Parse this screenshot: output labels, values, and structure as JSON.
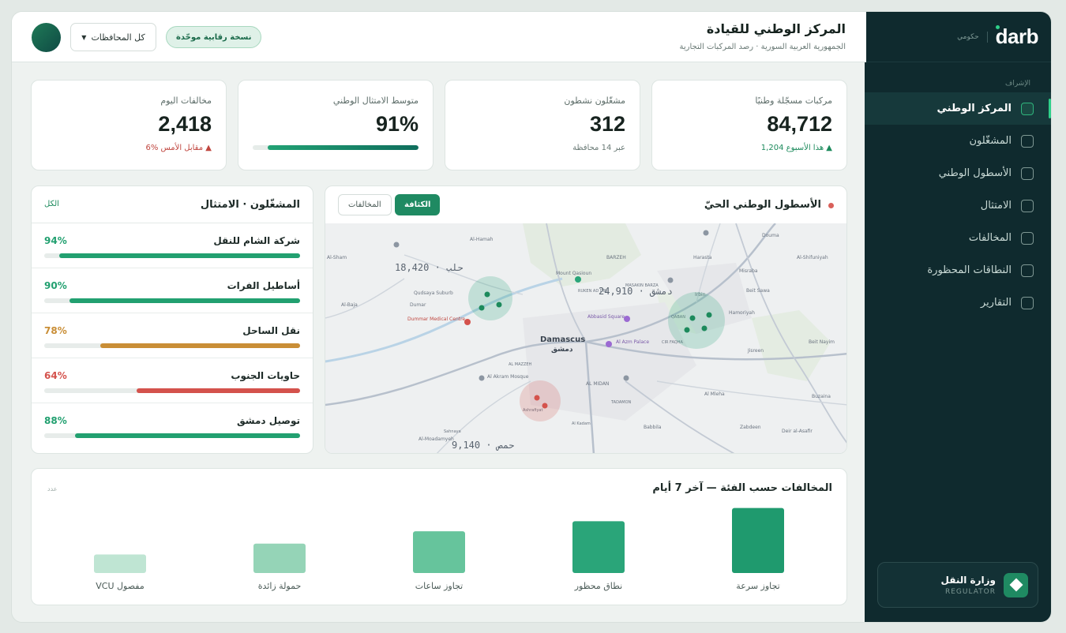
{
  "header": {
    "title": "المركز الوطني للقيادة",
    "subtitle": "الجمهورية العربية السورية · رصد المركبات التجارية",
    "badge": "نسخة رقابية موحّدة",
    "province_select": "كل المحافظات"
  },
  "sidebar": {
    "logo": "darb",
    "logo_sub": "حكومي",
    "section_label": "الإشراف",
    "items": [
      {
        "label": "المركز الوطني",
        "active": true
      },
      {
        "label": "المشغّلون",
        "active": false
      },
      {
        "label": "الأسطول الوطني",
        "active": false
      },
      {
        "label": "الامتثال",
        "active": false
      },
      {
        "label": "المخالفات",
        "active": false
      },
      {
        "label": "النطاقات المحظورة",
        "active": false
      },
      {
        "label": "التقارير",
        "active": false
      }
    ],
    "regulator": {
      "title": "وزارة النقل",
      "subtitle": "REGULATOR"
    }
  },
  "kpis": [
    {
      "label": "مركبات مسجّلة وطنيًا",
      "value": "84,712",
      "note": "1,204 هذا الأسبوع",
      "trend": "up"
    },
    {
      "label": "مشغّلون نشطون",
      "value": "312",
      "note": "عبر 14 محافظة",
      "trend": "none"
    },
    {
      "label": "متوسط الامتثال الوطني",
      "value": "91%",
      "progress": 0.91
    },
    {
      "label": "مخالفات اليوم",
      "value": "2,418",
      "note": "6% مقابل الأمس",
      "trend": "down"
    }
  ],
  "operators": {
    "title": "المشغّلون · الامتثال",
    "all_link": "الكل",
    "rows": [
      {
        "name": "شركة الشام للنقل",
        "pct": 94,
        "label": "94%",
        "color": "#22a070"
      },
      {
        "name": "أساطيل الفرات",
        "pct": 90,
        "label": "90%",
        "color": "#22a070"
      },
      {
        "name": "نقل الساحل",
        "pct": 78,
        "label": "78%",
        "color": "#c98e36"
      },
      {
        "name": "حاويات الجنوب",
        "pct": 64,
        "label": "64%",
        "color": "#d4524c"
      },
      {
        "name": "توصيل دمشق",
        "pct": 88,
        "label": "88%",
        "color": "#22a070"
      }
    ]
  },
  "map": {
    "title": "الأسطول الوطني الحيّ",
    "tab_density": "الكثافة",
    "tab_violations": "المخالفات",
    "counts": [
      {
        "label": "حلب · 18,420"
      },
      {
        "label": "دمشق · 24,910"
      },
      {
        "label": "حمص · 9,140"
      }
    ],
    "places": [
      "Al-Hamah",
      "Dumar",
      "Qudsaya Suburb",
      "Mount Qasioun",
      "BARZEH",
      "Harasta",
      "Douma",
      "Al-Shifuniyah",
      "Misraba",
      "Beit Sawa",
      "Irbin",
      "Hamoriyah",
      "Damascus",
      "دمشق",
      "Abbasid Square",
      "Al Azm Palace",
      "Dummar Medical Centre",
      "Al Akram Mosque",
      "AL MIDAN",
      "Al Mleha",
      "Jisreen",
      "Beit Nayim",
      "Buzaina",
      "Zabdeen",
      "Deir al-Asafir",
      "Babbila",
      "Al-Moadamyeh",
      "Al-Baja",
      "Al-Sham",
      "RUKEN AD DIN",
      "MASAKIN BARZA",
      "CIR FAQHA",
      "QABAN",
      "TADAMON",
      "Al Kadam",
      "AL MAZZEH",
      "Sahnaya",
      "Ashrafiyat"
    ]
  },
  "chart_data": {
    "type": "bar",
    "title": "المخالفات حسب الفئة — آخر 7 أيام",
    "unit_label": "عدد",
    "categories": [
      "تجاوز سرعة",
      "نطاق محظور",
      "تجاوز ساعات",
      "حمولة زائدة",
      "VCU مفصول"
    ],
    "values": [
      84,
      67,
      54,
      38,
      24
    ],
    "ylim": [
      0,
      100
    ],
    "colors": [
      "#1f9a6e",
      "#2aa579",
      "#66c49c",
      "#95d4b7",
      "#bfe5d3"
    ]
  }
}
